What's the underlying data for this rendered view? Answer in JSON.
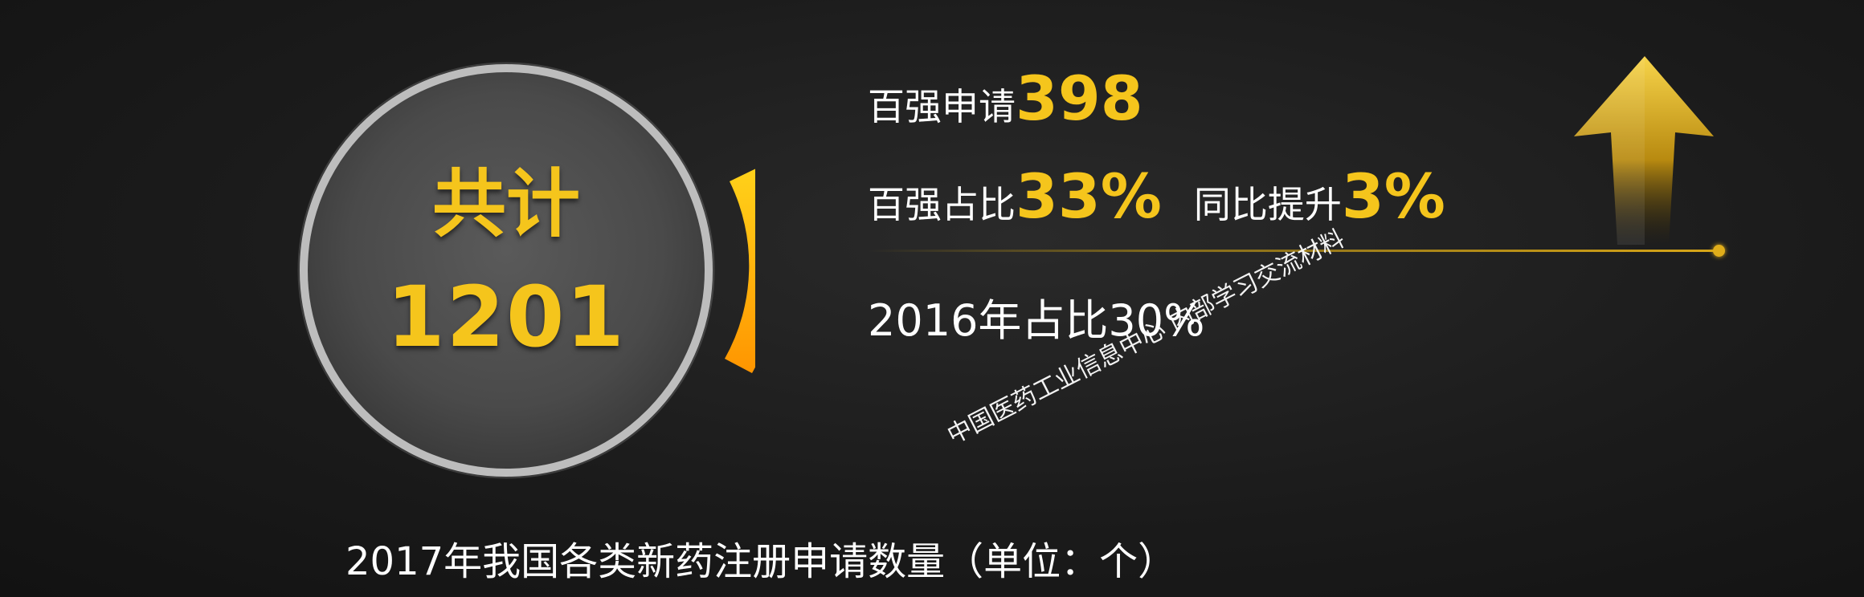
{
  "circle": {
    "title": "共计",
    "total": "1201"
  },
  "stats": {
    "applications_label": "百强申请",
    "applications_value": "398",
    "share_label": "百强占比",
    "share_value": "33%",
    "yoy_label": "同比提升",
    "yoy_value": "3%",
    "prev_year_note": "2016年占比30%"
  },
  "caption": "2017年我国各类新药注册申请数量（单位：个）",
  "watermark": "中国医药工业信息中心 内部学习交流材料",
  "colors": {
    "accent": "#f5c51c",
    "arc": "#ffa500",
    "background": "#1b1b1b"
  },
  "icons": {
    "trend": "up-arrow-icon"
  }
}
